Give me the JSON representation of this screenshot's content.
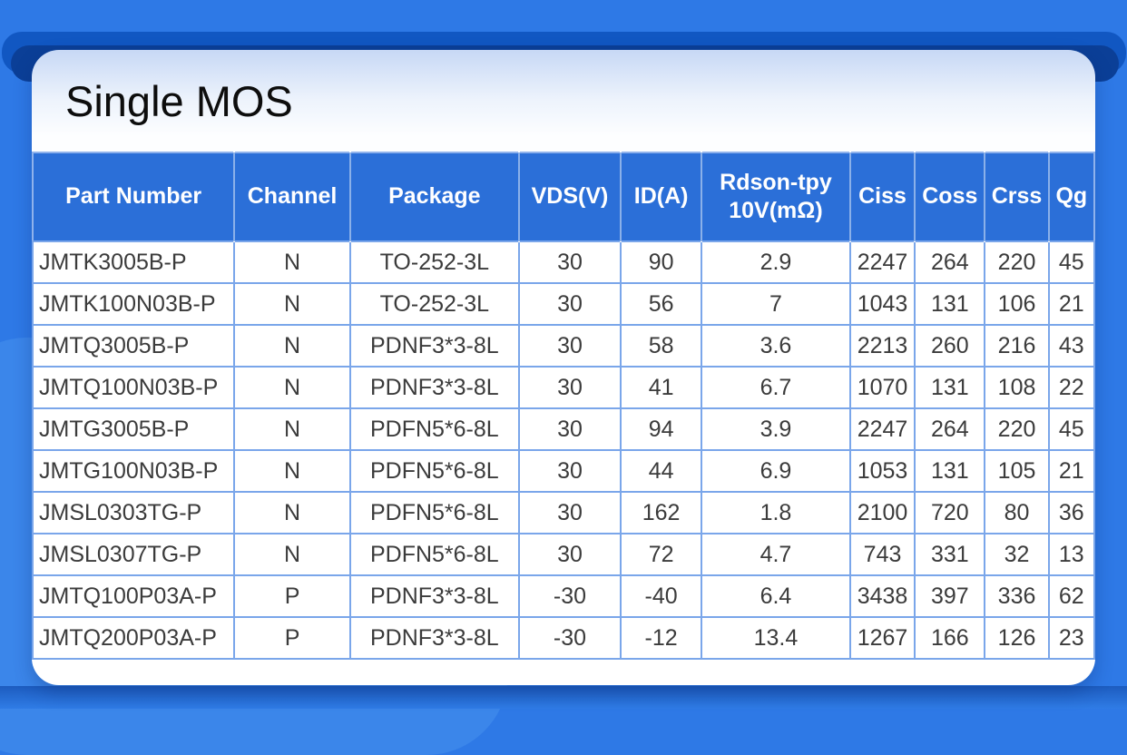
{
  "title": "Single MOS",
  "colors": {
    "background_blue": "#2E79E6",
    "background_light_blob": "#3B86EA",
    "top_bar_blue": "#1157C2",
    "top_pill_navy": "#0B3F97",
    "header_blue": "#2B6FD8",
    "card_gradient_top": "#C7D8F5",
    "table_border": "#7AA6EA",
    "data_text": "#3B3B3B"
  },
  "table": {
    "columns": [
      {
        "key": "part-number",
        "label": "Part Number",
        "width": "19.0%"
      },
      {
        "key": "channel",
        "label": "Channel",
        "width": "10.9%"
      },
      {
        "key": "package",
        "label": "Package",
        "width": "15.9%"
      },
      {
        "key": "vds",
        "label": "VDS(V)",
        "width": "9.6%"
      },
      {
        "key": "id",
        "label": "ID(A)",
        "width": "7.6%"
      },
      {
        "key": "rdson",
        "label": "Rdson-tpy\n10V(mΩ)",
        "width": "14.0%"
      },
      {
        "key": "ciss",
        "label": "Ciss",
        "width": "6.1%"
      },
      {
        "key": "coss",
        "label": "Coss",
        "width": "6.6%"
      },
      {
        "key": "crss",
        "label": "Crss",
        "width": "6.0%"
      },
      {
        "key": "qg",
        "label": "Qg",
        "width": "4.3%"
      }
    ],
    "rows": [
      {
        "cells": [
          "JMTK3005B-P",
          "N",
          "TO-252-3L",
          "30",
          "90",
          "2.9",
          "2247",
          "264",
          "220",
          "45"
        ]
      },
      {
        "cells": [
          "JMTK100N03B-P",
          "N",
          "TO-252-3L",
          "30",
          "56",
          "7",
          "1043",
          "131",
          "106",
          "21"
        ]
      },
      {
        "cells": [
          "JMTQ3005B-P",
          "N",
          "PDNF3*3-8L",
          "30",
          "58",
          "3.6",
          "2213",
          "260",
          "216",
          "43"
        ]
      },
      {
        "cells": [
          "JMTQ100N03B-P",
          "N",
          "PDNF3*3-8L",
          "30",
          "41",
          "6.7",
          "1070",
          "131",
          "108",
          "22"
        ]
      },
      {
        "cells": [
          "JMTG3005B-P",
          "N",
          "PDFN5*6-8L",
          "30",
          "94",
          "3.9",
          "2247",
          "264",
          "220",
          "45"
        ]
      },
      {
        "cells": [
          "JMTG100N03B-P",
          "N",
          "PDFN5*6-8L",
          "30",
          "44",
          "6.9",
          "1053",
          "131",
          "105",
          "21"
        ]
      },
      {
        "cells": [
          "JMSL0303TG-P",
          "N",
          "PDFN5*6-8L",
          "30",
          "162",
          "1.8",
          "2100",
          "720",
          "80",
          "36"
        ]
      },
      {
        "cells": [
          "JMSL0307TG-P",
          "N",
          "PDFN5*6-8L",
          "30",
          "72",
          "4.7",
          "743",
          "331",
          "32",
          "13"
        ]
      },
      {
        "cells": [
          "JMTQ100P03A-P",
          "P",
          "PDNF3*3-8L",
          "-30",
          "-40",
          "6.4",
          "3438",
          "397",
          "336",
          "62"
        ]
      },
      {
        "cells": [
          "JMTQ200P03A-P",
          "P",
          "PDNF3*3-8L",
          "-30",
          "-12",
          "13.4",
          "1267",
          "166",
          "126",
          "23"
        ]
      }
    ]
  }
}
